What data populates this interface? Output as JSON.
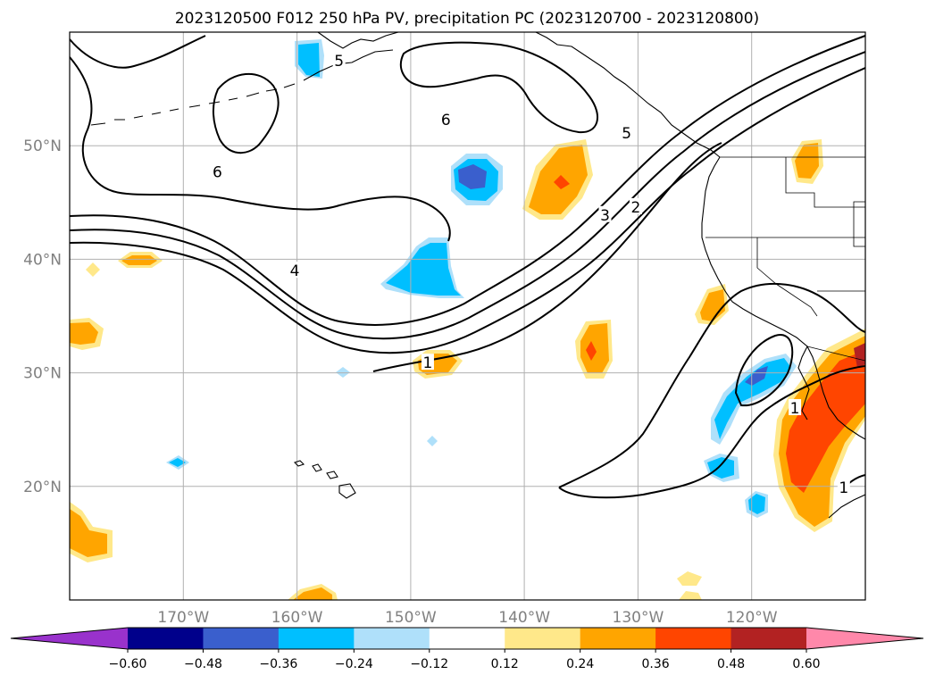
{
  "chart_data": {
    "type": "map-contour",
    "title": "2023120500 F012 250 hPa PV, precipitation PC (2023120700 - 2023120800)",
    "lon_range": [
      -180,
      -110
    ],
    "lat_range": [
      10,
      60
    ],
    "lon_ticks": [
      -170,
      -160,
      -150,
      -140,
      -130,
      -120
    ],
    "lon_tick_labels": [
      "170°W",
      "160°W",
      "150°W",
      "140°W",
      "130°W",
      "120°W"
    ],
    "lat_ticks": [
      20,
      30,
      40,
      50
    ],
    "lat_tick_labels": [
      "20°N",
      "30°N",
      "40°N",
      "50°N"
    ],
    "grid": true,
    "colorbar": {
      "orientation": "horizontal",
      "extend": "both",
      "levels": [
        -0.6,
        -0.48,
        -0.36,
        -0.24,
        -0.12,
        0.12,
        0.24,
        0.36,
        0.48,
        0.6
      ],
      "tick_labels": [
        "−0.60",
        "−0.48",
        "−0.36",
        "−0.24",
        "−0.12",
        "0.12",
        "0.24",
        "0.36",
        "0.48",
        "0.60"
      ],
      "colors": [
        "#9932cc",
        "#00008b",
        "#3a5fcd",
        "#00bfff",
        "#afe0fa",
        "#ffffff",
        "#ffe88a",
        "#ffa500",
        "#ff4500",
        "#b22222",
        "#ff88aa"
      ]
    },
    "pv_contour_labels": [
      {
        "text": "5",
        "lon": -156.3,
        "lat": 57.5
      },
      {
        "text": "6",
        "lon": -146.9,
        "lat": 52.3
      },
      {
        "text": "6",
        "lon": -167.0,
        "lat": 47.7
      },
      {
        "text": "4",
        "lon": -160.2,
        "lat": 39.0
      },
      {
        "text": "5",
        "lon": -131.0,
        "lat": 51.1
      },
      {
        "text": "3",
        "lon": -132.9,
        "lat": 43.9
      },
      {
        "text": "2",
        "lon": -130.2,
        "lat": 44.6
      },
      {
        "text": "1",
        "lon": -148.5,
        "lat": 30.9
      },
      {
        "text": "1",
        "lon": -116.2,
        "lat": 26.9
      },
      {
        "text": "1",
        "lon": -111.9,
        "lat": 19.9
      }
    ]
  }
}
